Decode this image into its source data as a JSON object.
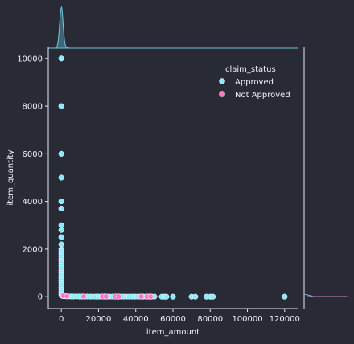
{
  "colors": {
    "background": "#282a36",
    "axis": "#e8e8f0",
    "text": "#f1f1f6",
    "approved": "#8be9fd",
    "approved_edge": "#ffffff",
    "not_approved": "#ff79c6",
    "marginal_line": "#6fc7d8",
    "marginal_fill": "#4b8f9f"
  },
  "chart_data": {
    "type": "scatter",
    "title": "",
    "xlabel": "item_amount",
    "ylabel": "item_quantity",
    "xlim": [
      -7000,
      127000
    ],
    "ylim": [
      -500,
      10500
    ],
    "xticks": [
      0,
      20000,
      40000,
      60000,
      80000,
      100000,
      120000
    ],
    "xtick_labels": [
      "0",
      "20000",
      "40000",
      "60000",
      "80000",
      "100000",
      "120000"
    ],
    "yticks": [
      0,
      2000,
      4000,
      6000,
      8000,
      10000
    ],
    "ytick_labels": [
      "0",
      "2000",
      "4000",
      "6000",
      "8000",
      "10000"
    ],
    "grid": false,
    "legend": {
      "title": "claim_status",
      "placement": "upper-right",
      "entries": [
        "Approved",
        "Not Approved"
      ]
    },
    "series": [
      {
        "name": "Approved",
        "points": [
          [
            0,
            10000
          ],
          [
            0,
            8000
          ],
          [
            0,
            6000
          ],
          [
            0,
            5000
          ],
          [
            0,
            4000
          ],
          [
            0,
            3700
          ],
          [
            0,
            3000
          ],
          [
            0,
            2800
          ],
          [
            0,
            2500
          ],
          [
            0,
            2200
          ],
          [
            0,
            2000
          ],
          [
            0,
            1900
          ],
          [
            0,
            1800
          ],
          [
            0,
            1700
          ],
          [
            0,
            1600
          ],
          [
            0,
            1500
          ],
          [
            0,
            1400
          ],
          [
            0,
            1300
          ],
          [
            0,
            1200
          ],
          [
            0,
            1100
          ],
          [
            0,
            1000
          ],
          [
            0,
            900
          ],
          [
            0,
            800
          ],
          [
            0,
            700
          ],
          [
            0,
            600
          ],
          [
            0,
            500
          ],
          [
            0,
            400
          ],
          [
            0,
            300
          ],
          [
            0,
            200
          ],
          [
            0,
            100
          ],
          [
            200,
            60
          ],
          [
            400,
            40
          ],
          [
            800,
            30
          ],
          [
            1500,
            20
          ],
          [
            2500,
            15
          ],
          [
            3500,
            10
          ],
          [
            5000,
            10
          ],
          [
            6500,
            5
          ],
          [
            8000,
            8
          ],
          [
            9500,
            5
          ],
          [
            11000,
            6
          ],
          [
            12500,
            4
          ],
          [
            14000,
            5
          ],
          [
            15500,
            3
          ],
          [
            17000,
            4
          ],
          [
            18500,
            3
          ],
          [
            20000,
            4
          ],
          [
            21500,
            3
          ],
          [
            23000,
            2
          ],
          [
            24500,
            3
          ],
          [
            26000,
            2
          ],
          [
            27500,
            2
          ],
          [
            29000,
            3
          ],
          [
            30500,
            2
          ],
          [
            32000,
            2
          ],
          [
            33500,
            2
          ],
          [
            35000,
            2
          ],
          [
            36500,
            2
          ],
          [
            38000,
            2
          ],
          [
            39500,
            2
          ],
          [
            41000,
            2
          ],
          [
            42500,
            2
          ],
          [
            44000,
            2
          ],
          [
            45500,
            2
          ],
          [
            47000,
            2
          ],
          [
            48500,
            2
          ],
          [
            50000,
            2
          ],
          [
            54000,
            1
          ],
          [
            55500,
            1
          ],
          [
            56500,
            1
          ],
          [
            60000,
            1
          ],
          [
            70000,
            1
          ],
          [
            72000,
            1
          ],
          [
            78000,
            1
          ],
          [
            80000,
            1
          ],
          [
            81500,
            1
          ],
          [
            120000,
            1
          ]
        ]
      },
      {
        "name": "Not Approved",
        "points": [
          [
            500,
            60
          ],
          [
            1000,
            40
          ],
          [
            3000,
            20
          ],
          [
            12000,
            8
          ],
          [
            22000,
            6
          ],
          [
            24000,
            5
          ],
          [
            29000,
            5
          ],
          [
            31000,
            4
          ],
          [
            43000,
            3
          ],
          [
            46000,
            3
          ],
          [
            48000,
            2
          ]
        ]
      }
    ]
  }
}
